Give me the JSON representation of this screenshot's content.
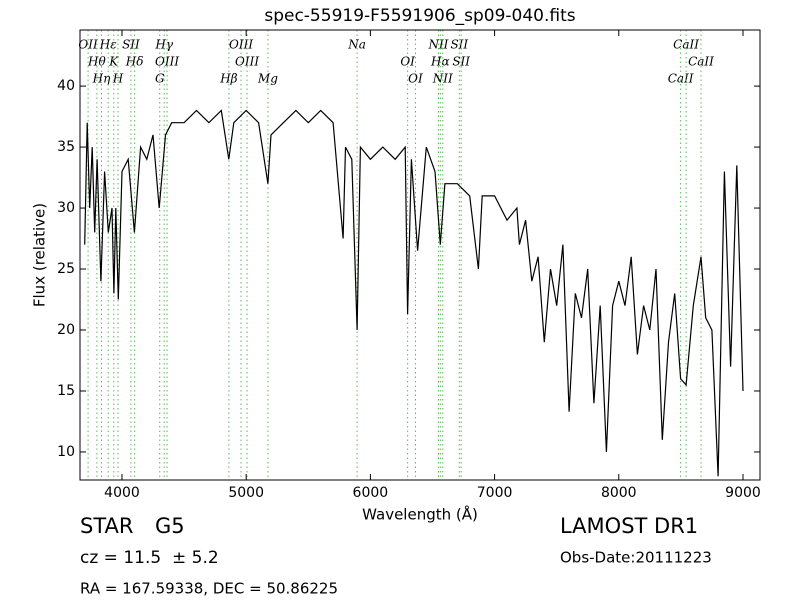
{
  "chart_data": {
    "type": "line",
    "title": "spec-55919-F5591906_sp09-040.fits",
    "x_label": "Wavelength (Å)",
    "y_label": "Flux (relative)",
    "xlim": [
      3662,
      9137
    ],
    "ylim": [
      7.7,
      44.6
    ],
    "xticks": [
      4000,
      5000,
      6000,
      7000,
      8000,
      9000
    ],
    "yticks": [
      10,
      15,
      20,
      25,
      30,
      35,
      40
    ],
    "series": [
      {
        "color": "#000000",
        "x": [
          3700,
          3720,
          3740,
          3760,
          3780,
          3800,
          3830,
          3860,
          3890,
          3920,
          3935,
          3950,
          3970,
          4000,
          4050,
          4100,
          4150,
          4200,
          4250,
          4300,
          4350,
          4400,
          4500,
          4600,
          4700,
          4800,
          4860,
          4900,
          5000,
          5100,
          5175,
          5200,
          5300,
          5400,
          5500,
          5600,
          5700,
          5780,
          5800,
          5850,
          5893,
          5920,
          6000,
          6100,
          6200,
          6280,
          6300,
          6330,
          6380,
          6450,
          6520,
          6563,
          6600,
          6700,
          6800,
          6870,
          6900,
          7000,
          7100,
          7180,
          7200,
          7250,
          7300,
          7350,
          7400,
          7450,
          7500,
          7550,
          7600,
          7650,
          7700,
          7750,
          7800,
          7850,
          7900,
          7950,
          8000,
          8050,
          8100,
          8150,
          8200,
          8250,
          8300,
          8350,
          8400,
          8450,
          8498,
          8542,
          8600,
          8662,
          8700,
          8750,
          8800,
          8850,
          8900,
          8950,
          9000
        ],
        "values": [
          27,
          37,
          30,
          35,
          28,
          34,
          24,
          33,
          28,
          30,
          23,
          30,
          22.5,
          33,
          34,
          28,
          35,
          34,
          36,
          30,
          36,
          37,
          37,
          38,
          37,
          38,
          34,
          37,
          38,
          37,
          32,
          36,
          37,
          38,
          37,
          38,
          37,
          27.5,
          35,
          34,
          20,
          35,
          34,
          35,
          34,
          35,
          21.3,
          34,
          26.5,
          35,
          33,
          27,
          32,
          32,
          31,
          25,
          31,
          31,
          29,
          30,
          27,
          29,
          24,
          26,
          19,
          25,
          22,
          27,
          13.3,
          23,
          21,
          25,
          14,
          22,
          10,
          22,
          24,
          22,
          26,
          18,
          22,
          20,
          25,
          11,
          19,
          23,
          16,
          15.5,
          22,
          26,
          21,
          20,
          8,
          33,
          17,
          33.5,
          15
        ]
      }
    ],
    "line_color": "#5cb85c",
    "lines": [
      {
        "name": "OII",
        "wavelength": 3727
      },
      {
        "name": "Hθ",
        "wavelength": 3798
      },
      {
        "name": "Hη",
        "wavelength": 3835
      },
      {
        "name": "Hε",
        "wavelength": 3889
      },
      {
        "name": "K",
        "wavelength": 3934
      },
      {
        "name": "H",
        "wavelength": 3968
      },
      {
        "name": "SII",
        "wavelength": 4072
      },
      {
        "name": "Hδ",
        "wavelength": 4102
      },
      {
        "name": "G",
        "wavelength": 4304
      },
      {
        "name": "Hγ",
        "wavelength": 4340
      },
      {
        "name": "OIII",
        "wavelength": 4363
      },
      {
        "name": "Hβ",
        "wavelength": 4861
      },
      {
        "name": "OIII",
        "wavelength": 4959
      },
      {
        "name": "OIII",
        "wavelength": 5007
      },
      {
        "name": "Mg",
        "wavelength": 5175
      },
      {
        "name": "Na",
        "wavelength": 5893
      },
      {
        "name": "OI",
        "wavelength": 6300
      },
      {
        "name": "OI",
        "wavelength": 6363
      },
      {
        "name": "NII",
        "wavelength": 6548
      },
      {
        "name": "Hα",
        "wavelength": 6563
      },
      {
        "name": "NII",
        "wavelength": 6583
      },
      {
        "name": "SII",
        "wavelength": 6716
      },
      {
        "name": "SII",
        "wavelength": 6731
      },
      {
        "name": "CaII",
        "wavelength": 8498
      },
      {
        "name": "CaII",
        "wavelength": 8542
      },
      {
        "name": "CaII",
        "wavelength": 8662
      }
    ],
    "object_class": "STAR",
    "subclass": "G5",
    "redshift": "cz = 11.5  ± 5.2",
    "survey": "LAMOST DR1",
    "obs_date": "Obs-Date:20111223",
    "coords": "RA = 167.59338, DEC = 50.86225"
  }
}
